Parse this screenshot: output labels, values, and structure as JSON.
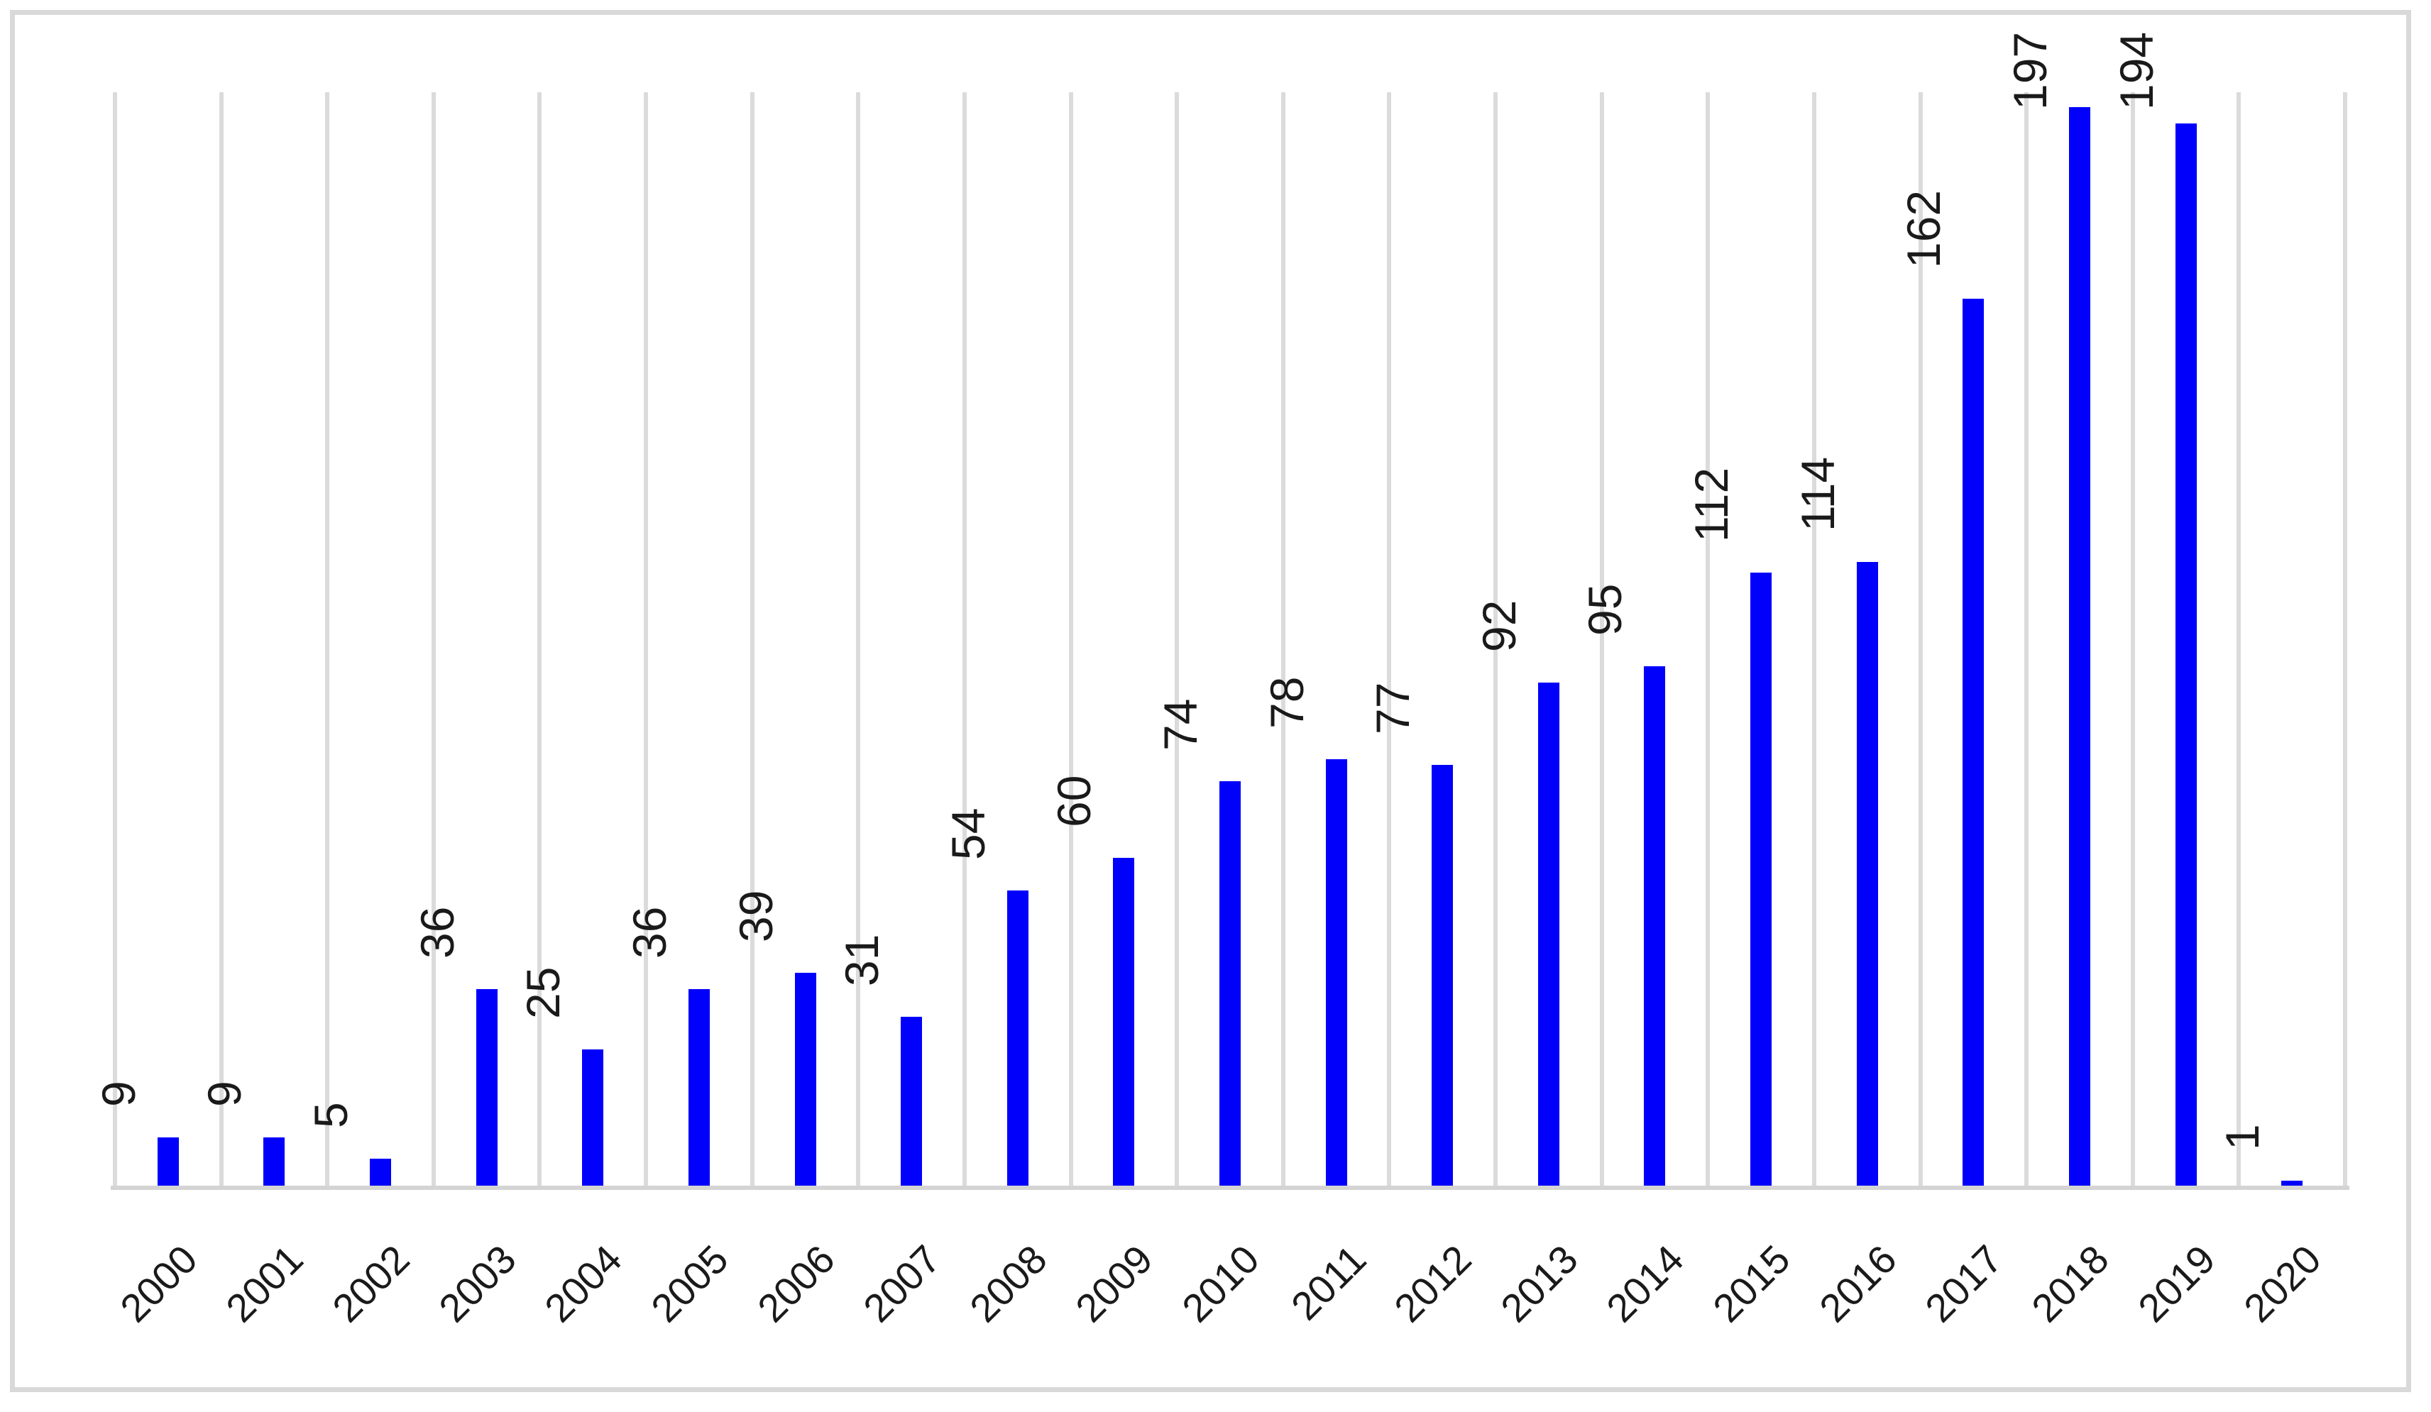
{
  "chart_data": {
    "type": "bar",
    "title": "",
    "xlabel": "",
    "ylabel": "",
    "categories": [
      "2000",
      "2001",
      "2002",
      "2003",
      "2004",
      "2005",
      "2006",
      "2007",
      "2008",
      "2009",
      "2010",
      "2011",
      "2012",
      "2013",
      "2014",
      "2015",
      "2016",
      "2017",
      "2018",
      "2019",
      "2020"
    ],
    "values": [
      9,
      9,
      5,
      36,
      25,
      36,
      39,
      31,
      54,
      60,
      74,
      78,
      77,
      92,
      95,
      112,
      114,
      162,
      197,
      194,
      1
    ],
    "ylim": [
      0,
      200
    ],
    "grid": "vertical-category-gridlines-only",
    "legend": "none",
    "data_labels": {
      "position": "outside-end",
      "rotation_degrees": -90
    },
    "x_tick_rotation_degrees": -45
  },
  "colors": {
    "bar": "#0000FB",
    "gridline": "#DBDBDB",
    "axis_line": "#D4D4D4",
    "frame_border": "#D9D9D9",
    "label_text": "#1A1A1A",
    "background": "#FFFFFF"
  }
}
